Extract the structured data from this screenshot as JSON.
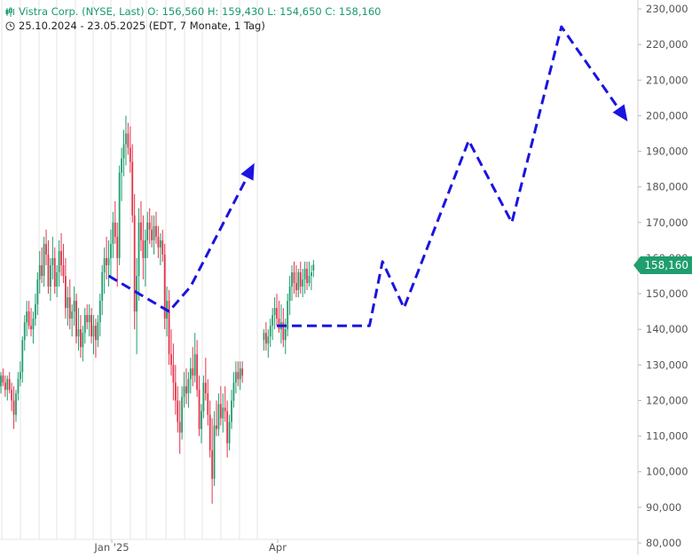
{
  "header": {
    "title": "Vistra Corp. (NYSE, Last)  O: 156,560  H: 159,430  L: 154,650  C: 158,160",
    "date_range": "25.10.2024 - 23.05.2025   (EDT, 7 Monate, 1 Tag)",
    "icons": [
      "candlestick-icon",
      "clock-icon"
    ]
  },
  "last_price_label": "158,160",
  "colors": {
    "up": "#1f9e6e",
    "down": "#e6334a",
    "forecast": "#1a14e0",
    "grid": "#e6e6e6"
  },
  "chart_data": {
    "type": "candlestick",
    "x_ticks": [
      "Jan '25",
      "Apr"
    ],
    "y_ticks": [
      "80,000",
      "90,000",
      "100,000",
      "110,000",
      "120,000",
      "130,000",
      "140,000",
      "150,000",
      "160,000",
      "170,000",
      "180,000",
      "190,000",
      "200,000",
      "210,000",
      "220,000",
      "230,000"
    ],
    "ylim": [
      80,
      230
    ],
    "grid": "vertical at month boundaries",
    "ohlc_trading_day_index_0_to_145": [
      [
        0,
        124,
        128,
        122,
        127
      ],
      [
        1,
        127,
        129,
        124,
        125
      ],
      [
        2,
        125,
        127,
        121,
        123
      ],
      [
        3,
        123,
        127,
        120,
        126
      ],
      [
        4,
        126,
        128,
        122,
        123
      ],
      [
        5,
        123,
        125,
        117,
        120
      ],
      [
        6,
        120,
        124,
        112,
        116
      ],
      [
        7,
        116,
        123,
        114,
        122
      ],
      [
        8,
        122,
        128,
        120,
        126
      ],
      [
        9,
        126,
        131,
        124,
        128
      ],
      [
        10,
        128,
        138,
        125,
        137
      ],
      [
        11,
        137,
        144,
        134,
        142
      ],
      [
        12,
        142,
        148,
        138,
        145
      ],
      [
        13,
        145,
        148,
        140,
        141
      ],
      [
        14,
        141,
        146,
        138,
        140
      ],
      [
        15,
        140,
        145,
        136,
        143
      ],
      [
        16,
        143,
        150,
        141,
        147
      ],
      [
        17,
        147,
        156,
        144,
        154
      ],
      [
        18,
        154,
        162,
        150,
        158
      ],
      [
        19,
        158,
        163,
        153,
        155
      ],
      [
        20,
        155,
        166,
        152,
        164
      ],
      [
        21,
        164,
        168,
        158,
        161
      ],
      [
        22,
        161,
        165,
        150,
        152
      ],
      [
        23,
        152,
        160,
        148,
        158
      ],
      [
        24,
        158,
        166,
        154,
        160
      ],
      [
        25,
        160,
        163,
        150,
        152
      ],
      [
        26,
        152,
        158,
        149,
        156
      ],
      [
        27,
        156,
        165,
        152,
        162
      ],
      [
        28,
        162,
        167,
        155,
        158
      ],
      [
        29,
        158,
        164,
        153,
        155
      ],
      [
        30,
        155,
        160,
        143,
        146
      ],
      [
        31,
        146,
        152,
        141,
        149
      ],
      [
        32,
        149,
        154,
        140,
        143
      ],
      [
        33,
        143,
        147,
        138,
        145
      ],
      [
        34,
        145,
        152,
        141,
        148
      ],
      [
        35,
        148,
        150,
        136,
        138
      ],
      [
        36,
        138,
        146,
        134,
        140
      ],
      [
        37,
        140,
        144,
        132,
        135
      ],
      [
        38,
        135,
        141,
        131,
        139
      ],
      [
        39,
        139,
        146,
        136,
        144
      ],
      [
        40,
        144,
        147,
        140,
        142
      ],
      [
        41,
        142,
        147,
        138,
        144
      ],
      [
        42,
        144,
        146,
        136,
        138
      ],
      [
        43,
        138,
        144,
        133,
        141
      ],
      [
        44,
        141,
        143,
        132,
        137
      ],
      [
        45,
        137,
        144,
        135,
        142
      ],
      [
        46,
        142,
        150,
        138,
        148
      ],
      [
        47,
        148,
        158,
        144,
        156
      ],
      [
        48,
        156,
        163,
        150,
        160
      ],
      [
        49,
        160,
        166,
        154,
        158
      ],
      [
        50,
        158,
        165,
        152,
        160
      ],
      [
        51,
        160,
        168,
        155,
        164
      ],
      [
        52,
        164,
        173,
        160,
        170
      ],
      [
        53,
        170,
        176,
        164,
        166
      ],
      [
        54,
        166,
        170,
        152,
        160
      ],
      [
        55,
        160,
        186,
        158,
        184
      ],
      [
        56,
        184,
        191,
        176,
        188
      ],
      [
        57,
        188,
        196,
        183,
        192
      ],
      [
        58,
        192,
        200,
        186,
        195
      ],
      [
        59,
        195,
        198,
        189,
        191
      ],
      [
        60,
        191,
        197,
        184,
        187
      ],
      [
        61,
        187,
        192,
        170,
        172
      ],
      [
        62,
        172,
        178,
        140,
        145
      ],
      [
        63,
        145,
        160,
        133,
        155
      ],
      [
        64,
        155,
        174,
        148,
        170
      ],
      [
        65,
        170,
        176,
        162,
        165
      ],
      [
        66,
        165,
        172,
        154,
        160
      ],
      [
        67,
        160,
        168,
        152,
        165
      ],
      [
        68,
        165,
        173,
        160,
        170
      ],
      [
        69,
        170,
        174,
        164,
        168
      ],
      [
        70,
        168,
        172,
        163,
        165
      ],
      [
        71,
        165,
        172,
        161,
        169
      ],
      [
        72,
        169,
        173,
        164,
        166
      ],
      [
        73,
        166,
        169,
        160,
        163
      ],
      [
        74,
        163,
        167,
        158,
        165
      ],
      [
        75,
        165,
        168,
        159,
        161
      ],
      [
        76,
        161,
        164,
        140,
        143
      ],
      [
        77,
        143,
        152,
        138,
        148
      ],
      [
        78,
        148,
        151,
        130,
        133
      ],
      [
        79,
        133,
        140,
        127,
        130
      ],
      [
        80,
        130,
        136,
        120,
        125
      ],
      [
        81,
        125,
        130,
        116,
        120
      ],
      [
        82,
        120,
        124,
        111,
        114
      ],
      [
        83,
        114,
        120,
        105,
        111
      ],
      [
        84,
        111,
        124,
        109,
        121
      ],
      [
        85,
        121,
        128,
        118,
        124
      ],
      [
        86,
        124,
        129,
        119,
        122
      ],
      [
        87,
        122,
        128,
        118,
        126
      ],
      [
        88,
        126,
        132,
        122,
        129
      ],
      [
        89,
        129,
        135,
        124,
        127
      ],
      [
        90,
        127,
        139,
        125,
        133
      ],
      [
        91,
        133,
        137,
        121,
        123
      ],
      [
        92,
        123,
        127,
        110,
        112
      ],
      [
        93,
        112,
        119,
        108,
        117
      ],
      [
        94,
        117,
        127,
        115,
        125
      ],
      [
        95,
        125,
        132,
        120,
        122
      ],
      [
        96,
        122,
        126,
        113,
        116
      ],
      [
        97,
        116,
        120,
        104,
        106
      ],
      [
        98,
        106,
        115,
        91,
        98
      ],
      [
        99,
        98,
        117,
        96,
        113
      ],
      [
        100,
        113,
        120,
        110,
        112
      ],
      [
        101,
        112,
        122,
        110,
        119
      ],
      [
        102,
        119,
        124,
        113,
        115
      ],
      [
        103,
        115,
        122,
        111,
        118
      ],
      [
        104,
        118,
        124,
        114,
        117
      ],
      [
        105,
        117,
        120,
        104,
        108
      ],
      [
        106,
        108,
        116,
        106,
        114
      ],
      [
        107,
        114,
        123,
        112,
        120
      ],
      [
        108,
        120,
        128,
        118,
        125
      ],
      [
        109,
        125,
        131,
        122,
        128
      ],
      [
        110,
        128,
        131,
        124,
        126
      ],
      [
        111,
        126,
        131,
        123,
        129
      ],
      [
        112,
        129,
        131,
        125,
        127
      ],
      [
        122,
        137,
        140,
        134,
        139
      ],
      [
        123,
        139,
        142,
        134,
        136
      ],
      [
        124,
        136,
        140,
        132,
        138
      ],
      [
        125,
        138,
        143,
        135,
        141
      ],
      [
        126,
        141,
        146,
        137,
        144
      ],
      [
        127,
        144,
        149,
        140,
        146
      ],
      [
        128,
        146,
        150,
        141,
        143
      ],
      [
        129,
        143,
        148,
        139,
        140
      ],
      [
        130,
        140,
        147,
        136,
        142
      ],
      [
        131,
        142,
        146,
        135,
        137
      ],
      [
        132,
        137,
        143,
        133,
        140
      ],
      [
        133,
        140,
        150,
        138,
        148
      ],
      [
        134,
        148,
        155,
        144,
        152
      ],
      [
        135,
        152,
        158,
        148,
        156
      ],
      [
        136,
        156,
        159,
        150,
        153
      ],
      [
        137,
        153,
        158,
        149,
        151
      ],
      [
        138,
        151,
        157,
        149,
        156
      ],
      [
        139,
        156,
        159,
        150,
        152
      ],
      [
        140,
        152,
        157,
        149,
        154
      ],
      [
        141,
        154,
        159,
        150,
        157
      ],
      [
        142,
        157,
        159,
        151,
        153
      ],
      [
        143,
        153,
        159,
        152,
        155
      ],
      [
        144,
        155,
        158,
        151,
        156
      ],
      [
        145,
        156.56,
        159.43,
        154.65,
        158.16
      ]
    ],
    "annotation_path_1": [
      [
        50,
        155
      ],
      [
        78,
        145
      ],
      [
        88,
        152
      ],
      [
        117,
        186
      ]
    ],
    "annotation_path_2": [
      [
        128,
        141
      ],
      [
        152,
        141
      ],
      [
        171,
        141
      ],
      [
        177,
        159
      ],
      [
        187,
        146
      ],
      [
        217,
        193
      ],
      [
        237,
        170
      ],
      [
        260,
        225
      ],
      [
        290,
        199
      ]
    ],
    "last_close": 158.16
  }
}
